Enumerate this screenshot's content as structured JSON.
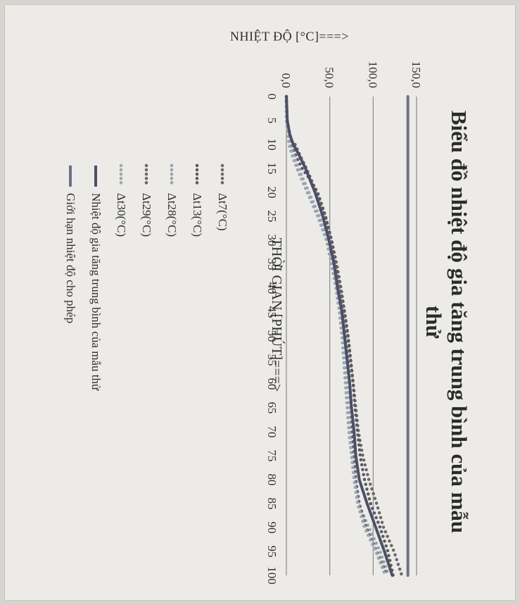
{
  "chart_data": {
    "type": "line",
    "title": "Biểu đồ nhiệt độ gia tăng trung bình của mẫu thử",
    "xlabel": "THỜI GIAN [PHÚT]===>",
    "ylabel": "NHIỆT ĐỘ [°C]===>",
    "x_ticks": [
      "0",
      "5",
      "10",
      "15",
      "20",
      "25",
      "30",
      "35",
      "40",
      "45",
      "50",
      "55",
      "60",
      "65",
      "70",
      "75",
      "80",
      "85",
      "90",
      "95",
      "100"
    ],
    "y_ticks": [
      "0,0",
      "50,0",
      "100,0",
      "150,0"
    ],
    "xlim": [
      0,
      100
    ],
    "ylim": [
      0,
      150
    ],
    "grid": "horizontal",
    "legend_position": "bottom",
    "series": [
      {
        "name": "Δt7(°C)",
        "style": "dotted",
        "color": "#6e6670",
        "x": [
          0,
          5,
          9,
          10,
          12,
          15,
          20,
          25,
          30,
          35,
          40,
          45,
          50,
          55,
          60,
          65,
          70,
          75,
          80,
          85,
          90,
          95,
          100
        ],
        "values": [
          0,
          1,
          5,
          10,
          15,
          23,
          35,
          45,
          52,
          58,
          63,
          67,
          71,
          74,
          77,
          80,
          83,
          88,
          95,
          104,
          112,
          124,
          133
        ]
      },
      {
        "name": "Δt13(°C)",
        "style": "dotted",
        "color": "#5a5a62",
        "x": [
          0,
          5,
          8,
          10,
          12,
          15,
          17,
          20,
          25,
          30,
          35,
          40,
          45,
          50,
          55,
          60,
          65,
          70,
          75,
          80,
          85,
          90,
          95,
          100
        ],
        "values": [
          0,
          0,
          2,
          5,
          10,
          18,
          26,
          36,
          45,
          52,
          57,
          62,
          67,
          71,
          74,
          77,
          79,
          82,
          85,
          90,
          97,
          108,
          117,
          123
        ]
      },
      {
        "name": "Δt28(°C)",
        "style": "dotted",
        "color": "#9aa3b3",
        "x": [
          0,
          5,
          10,
          12,
          15,
          20,
          25,
          30,
          35,
          40,
          45,
          50,
          55,
          60,
          65,
          70,
          75,
          80,
          85,
          90,
          95,
          100
        ],
        "values": [
          0,
          0,
          4,
          8,
          14,
          26,
          38,
          47,
          53,
          58,
          62,
          65,
          68,
          70,
          72,
          74,
          76,
          79,
          83,
          95,
          108,
          118
        ]
      },
      {
        "name": "Δt29(°C)",
        "style": "dotted",
        "color": "#6a6872",
        "x": [
          0,
          5,
          10,
          12,
          15,
          20,
          25,
          30,
          35,
          40,
          45,
          50,
          55,
          60,
          65,
          70,
          75,
          80,
          85,
          90,
          95,
          100
        ],
        "values": [
          0,
          0,
          7,
          14,
          22,
          33,
          42,
          50,
          56,
          61,
          65,
          68,
          71,
          73,
          75,
          76,
          78,
          80,
          84,
          92,
          104,
          116
        ]
      },
      {
        "name": "Δt30(°C)",
        "style": "dotted",
        "color": "#9aa7b2",
        "x": [
          0,
          5,
          10,
          12,
          15,
          20,
          25,
          30,
          35,
          40,
          45,
          50,
          55,
          60,
          65,
          70,
          75,
          80,
          85,
          90,
          95,
          100
        ],
        "values": [
          0,
          0,
          3,
          6,
          12,
          24,
          36,
          46,
          52,
          57,
          61,
          64,
          66,
          68,
          70,
          72,
          75,
          78,
          82,
          90,
          103,
          114
        ]
      },
      {
        "name": "Nhiệt độ gia tăng trung bình của mẫu thử",
        "style": "solid",
        "color": "#4c4f66",
        "x": [
          0,
          5,
          8,
          10,
          12,
          15,
          20,
          25,
          30,
          35,
          40,
          45,
          50,
          55,
          60,
          65,
          70,
          75,
          80,
          85,
          90,
          95,
          100
        ],
        "values": [
          0,
          1,
          4,
          8,
          14,
          22,
          33,
          42,
          49,
          55,
          59,
          64,
          67,
          70,
          73,
          75,
          78,
          80,
          84,
          93,
          103,
          113,
          122
        ]
      },
      {
        "name": "Giới hạn nhiệt độ cho phép",
        "style": "solid",
        "color": "#6e7088",
        "x": [
          0,
          100
        ],
        "values": [
          140,
          140
        ]
      }
    ]
  }
}
